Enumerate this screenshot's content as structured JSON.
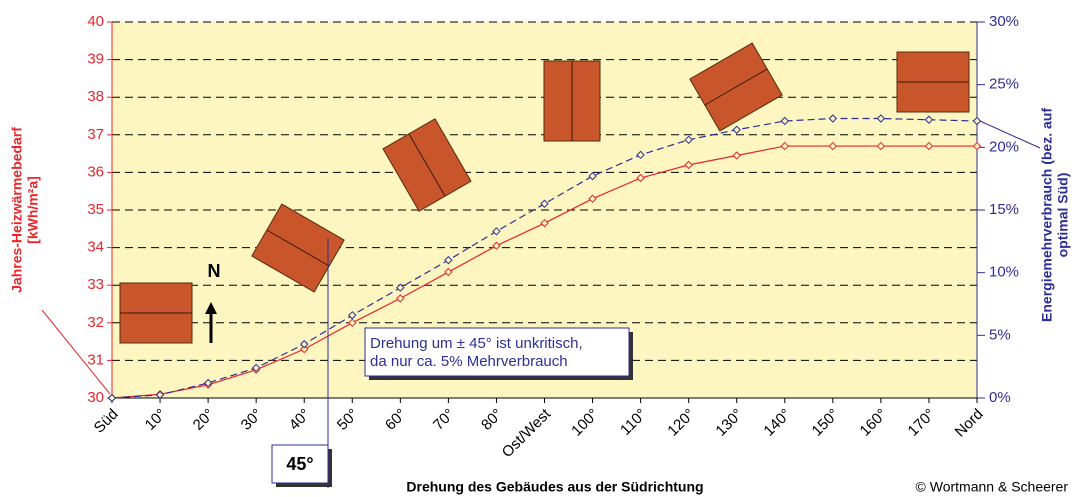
{
  "chart_data": {
    "type": "line",
    "categories": [
      "Süd",
      "10°",
      "20°",
      "30°",
      "40°",
      "50°",
      "60°",
      "70°",
      "80°",
      "Ost/West",
      "100°",
      "110°",
      "120°",
      "130°",
      "140°",
      "150°",
      "160°",
      "170°",
      "Nord"
    ],
    "series": [
      {
        "color": "#e8262b",
        "values": [
          30.0,
          30.1,
          30.35,
          30.75,
          31.3,
          32.0,
          32.65,
          33.35,
          34.05,
          34.65,
          35.3,
          35.85,
          36.2,
          36.45,
          36.7,
          36.7,
          36.7,
          36.7,
          36.7
        ]
      },
      {
        "color": "#2e2e96",
        "axis": "y2",
        "dashed": true,
        "values": [
          0,
          0.25,
          1.2,
          2.4,
          4.3,
          6.6,
          8.8,
          11.0,
          13.3,
          15.5,
          17.7,
          19.4,
          20.6,
          21.4,
          22.1,
          22.3,
          22.3,
          22.2,
          22.1
        ]
      }
    ],
    "ylim": [
      30,
      40
    ],
    "yticks": [
      30,
      31,
      32,
      33,
      34,
      35,
      36,
      37,
      38,
      39,
      40
    ],
    "y2lim": [
      0,
      30
    ],
    "y2ticks": [
      {
        "value": 0,
        "label": "0%"
      },
      {
        "value": 5,
        "label": "5%"
      },
      {
        "value": 10,
        "label": "10%"
      },
      {
        "value": 15,
        "label": "15%"
      },
      {
        "value": 20,
        "label": "20%"
      },
      {
        "value": 25,
        "label": "25%"
      },
      {
        "value": 30,
        "label": "30%"
      }
    ],
    "grid": true,
    "ylabel": [
      "Jahres-Heizwärmebedarf",
      "[kWh/m²a]"
    ],
    "y2label": [
      "Energiemehrverbrauch (bez. auf",
      "optimal Süd)"
    ],
    "xlabel": "Drehung des Gebäudes aus der Südrichtung",
    "credit": "© Wortmann & Scheerer",
    "north": "N",
    "note": [
      "Drehung um ± 45° ist unkritisch,",
      "da nur ca. 5% Mehrverbrauch"
    ],
    "angle_marker": "45°"
  }
}
